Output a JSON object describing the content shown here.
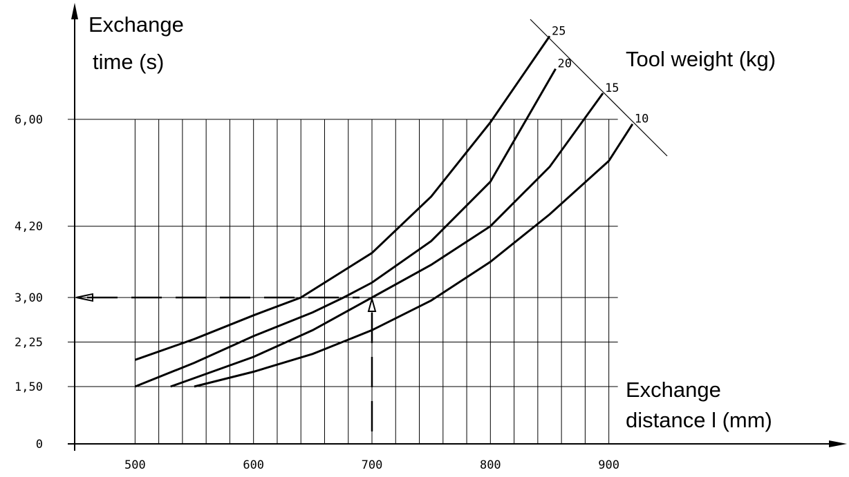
{
  "chart_data": {
    "type": "line",
    "y_label_lines": [
      "Exchange",
      "time (s)"
    ],
    "x_label_lines": [
      "Exchange",
      "distance  l (mm)"
    ],
    "legend_title": "Tool weight  (kg)",
    "xlim": [
      449,
      1094
    ],
    "ylim": [
      0,
      7.8
    ],
    "xticks": [
      500,
      600,
      700,
      800,
      900
    ],
    "x_minor_ticks": [
      500,
      520,
      540,
      560,
      580,
      600,
      620,
      640,
      660,
      680,
      700,
      720,
      740,
      760,
      780,
      800,
      820,
      840,
      860,
      880,
      900
    ],
    "yticks": [
      {
        "value": 0,
        "label": "0"
      },
      {
        "value": 1.5,
        "label": "1,50"
      },
      {
        "value": 2.25,
        "label": "2,25"
      },
      {
        "value": 3.0,
        "label": "3,00"
      },
      {
        "value": 4.2,
        "label": "4,20"
      },
      {
        "value": 6.0,
        "label": "6,00"
      }
    ],
    "grid": true,
    "annotation": {
      "x": 700,
      "y": 3.0
    },
    "series": [
      {
        "name": "25",
        "color": "#000000",
        "x": [
          500,
          550,
          600,
          640,
          700,
          750,
          800,
          850
        ],
        "values": [
          1.95,
          2.3,
          2.7,
          3.0,
          3.75,
          4.7,
          5.95,
          7.4
        ]
      },
      {
        "name": "20",
        "color": "#000000",
        "x": [
          500,
          550,
          600,
          650,
          676,
          700,
          750,
          800,
          855
        ],
        "values": [
          1.5,
          1.9,
          2.35,
          2.75,
          3.0,
          3.25,
          3.95,
          4.95,
          6.85
        ]
      },
      {
        "name": "15",
        "color": "#000000",
        "x": [
          530,
          600,
          650,
          700,
          750,
          800,
          850,
          895
        ],
        "values": [
          1.5,
          2.0,
          2.45,
          3.0,
          3.55,
          4.2,
          5.2,
          6.44
        ]
      },
      {
        "name": "10",
        "color": "#000000",
        "x": [
          550,
          600,
          650,
          700,
          750,
          800,
          850,
          900,
          920
        ],
        "values": [
          1.5,
          1.75,
          2.05,
          2.45,
          2.95,
          3.6,
          4.4,
          5.3,
          5.92
        ]
      }
    ]
  }
}
